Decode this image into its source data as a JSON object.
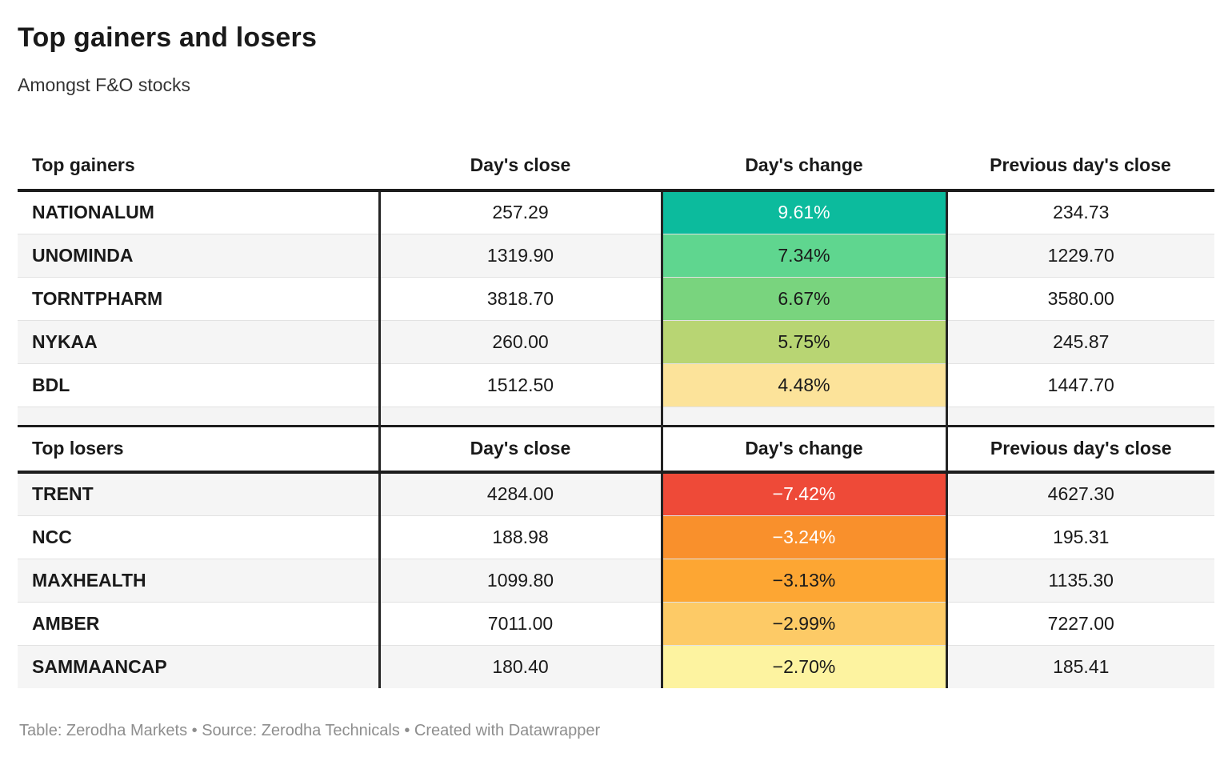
{
  "header": {
    "title": "Top gainers and losers",
    "subtitle": "Amongst F&O stocks"
  },
  "footer": {
    "text": "Table: Zerodha Markets • Source: Zerodha Technicals • Created with Datawrapper"
  },
  "colors": {
    "positive_max": "#0cbb9d",
    "negative_max": "#ee4a38",
    "row_alt_bg": "#f5f5f5",
    "divider": "#242424",
    "footer_text": "#8e8e8e"
  },
  "chart_data": [
    {
      "type": "table",
      "title": "Top gainers",
      "columns": [
        "Top gainers",
        "Day's close",
        "Day's change",
        "Previous day's close"
      ],
      "rows": [
        {
          "name": "NATIONALUM",
          "close": "257.29",
          "change": "9.61%",
          "prev": "234.73",
          "bg": "#0cbb9d",
          "fg": "#ffffff"
        },
        {
          "name": "UNOMINDA",
          "close": "1319.90",
          "change": "7.34%",
          "prev": "1229.70",
          "bg": "#5fd68f",
          "fg": "#1a1a1a"
        },
        {
          "name": "TORNTPHARM",
          "close": "3818.70",
          "change": "6.67%",
          "prev": "3580.00",
          "bg": "#79d47e",
          "fg": "#1a1a1a"
        },
        {
          "name": "NYKAA",
          "close": "260.00",
          "change": "5.75%",
          "prev": "245.87",
          "bg": "#b8d573",
          "fg": "#1a1a1a"
        },
        {
          "name": "BDL",
          "close": "1512.50",
          "change": "4.48%",
          "prev": "1447.70",
          "bg": "#fce39a",
          "fg": "#1a1a1a"
        }
      ]
    },
    {
      "type": "table",
      "title": "Top losers",
      "columns": [
        "Top losers",
        "Day's close",
        "Day's change",
        "Previous day's close"
      ],
      "rows": [
        {
          "name": "TRENT",
          "close": "4284.00",
          "change": "−7.42%",
          "prev": "4627.30",
          "bg": "#ee4a38",
          "fg": "#ffffff"
        },
        {
          "name": "NCC",
          "close": "188.98",
          "change": "−3.24%",
          "prev": "195.31",
          "bg": "#f9902c",
          "fg": "#ffffff"
        },
        {
          "name": "MAXHEALTH",
          "close": "1099.80",
          "change": "−3.13%",
          "prev": "1135.30",
          "bg": "#fda633",
          "fg": "#1a1a1a"
        },
        {
          "name": "AMBER",
          "close": "7011.00",
          "change": "−2.99%",
          "prev": "7227.00",
          "bg": "#fdca66",
          "fg": "#1a1a1a"
        },
        {
          "name": "SAMMAANCAP",
          "close": "180.40",
          "change": "−2.70%",
          "prev": "185.41",
          "bg": "#fdf3a0",
          "fg": "#1a1a1a"
        }
      ]
    }
  ]
}
